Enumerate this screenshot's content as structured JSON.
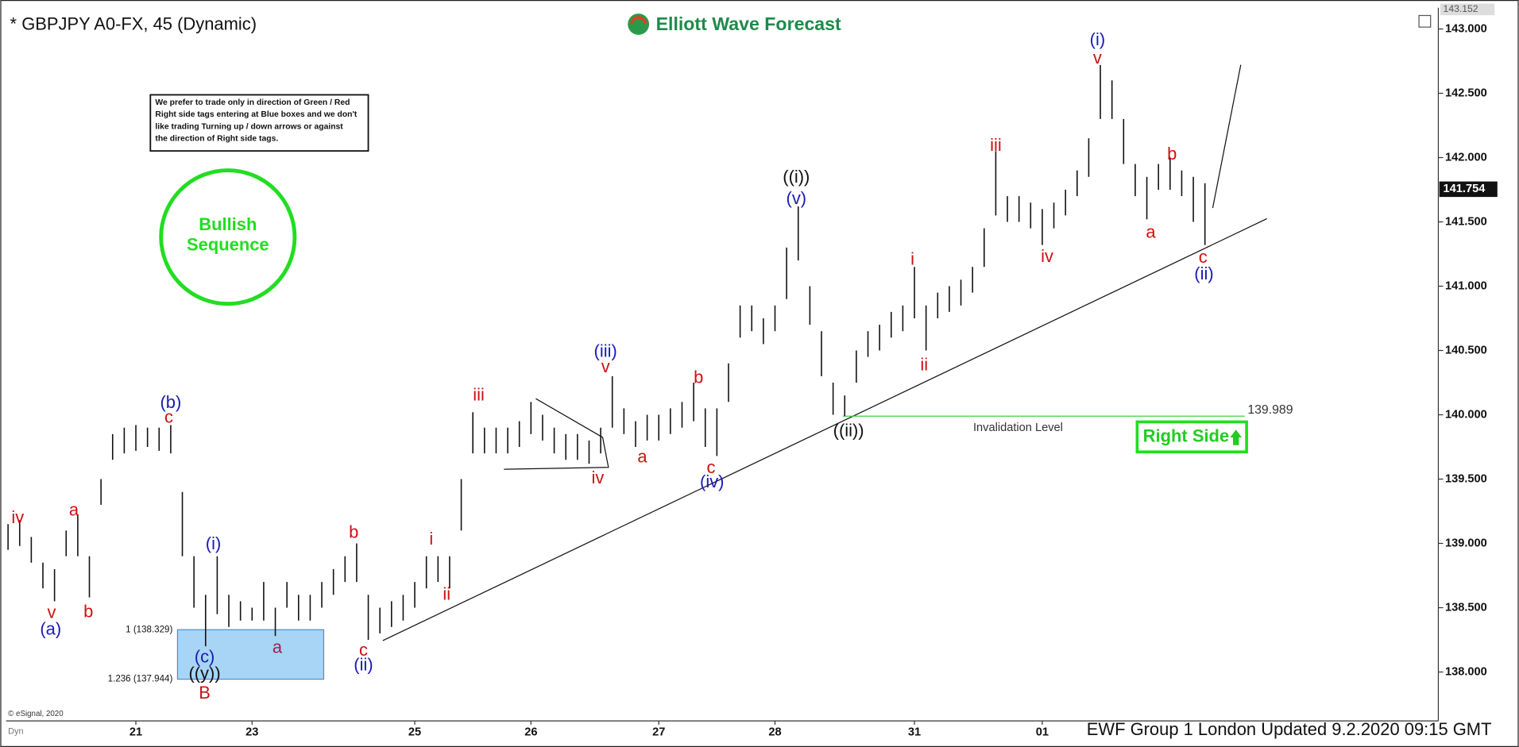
{
  "chart_data": {
    "type": "ohlc",
    "title": "* GBPJPY A0-FX, 45 (Dynamic)",
    "brand": "Elliott Wave Forecast",
    "disclaimer": [
      "We prefer to trade only in direction of Green / Red",
      "Right side tags entering at Blue boxes and we don't",
      "like trading Turning up / down arrows or against",
      "the direction of Right side tags."
    ],
    "badge": [
      "Bullish",
      "Sequence"
    ],
    "right_side": "Right Side",
    "footer": "EWF Group 1 London Updated 9.2.2020 09:15 GMT",
    "copyright": "© eSignal, 2020",
    "corner": "Dyn",
    "color": "#111111",
    "categories": [
      null,
      null,
      null,
      null,
      null,
      null,
      null,
      null,
      null,
      null,
      null,
      "21",
      null,
      null,
      null,
      null,
      null,
      null,
      null,
      null,
      null,
      "23",
      null,
      null,
      null,
      null,
      null,
      null,
      null,
      null,
      null,
      null,
      null,
      null,
      null,
      "25",
      null,
      null,
      null,
      null,
      null,
      null,
      null,
      null,
      null,
      "26",
      null,
      null,
      null,
      null,
      null,
      null,
      null,
      null,
      null,
      null,
      "27",
      null,
      null,
      null,
      null,
      null,
      null,
      null,
      null,
      null,
      "28",
      null,
      null,
      null,
      null,
      null,
      null,
      null,
      null,
      null,
      null,
      null,
      "31",
      null,
      null,
      null,
      null,
      null,
      null,
      null,
      null,
      null,
      null,
      "01",
      null,
      null,
      null,
      null,
      null,
      null,
      null,
      null,
      null,
      null,
      null,
      null,
      null,
      null
    ],
    "highs": [
      139.15,
      139.18,
      139.05,
      138.85,
      138.8,
      139.1,
      139.22,
      138.9,
      139.5,
      139.85,
      139.9,
      139.92,
      139.9,
      139.9,
      139.92,
      139.4,
      138.9,
      138.6,
      138.9,
      138.6,
      138.55,
      138.5,
      138.7,
      138.5,
      138.7,
      138.6,
      138.6,
      138.7,
      138.8,
      138.9,
      139.0,
      138.6,
      138.5,
      138.55,
      138.6,
      138.7,
      138.9,
      138.9,
      138.9,
      139.5,
      140.02,
      139.9,
      139.9,
      139.9,
      139.95,
      140.1,
      140.0,
      139.9,
      139.85,
      139.85,
      139.8,
      139.9,
      140.3,
      140.05,
      139.95,
      140.0,
      140.0,
      140.05,
      140.1,
      140.25,
      140.05,
      140.05,
      140.4,
      140.85,
      140.85,
      140.75,
      140.85,
      141.3,
      141.62,
      141.0,
      140.65,
      140.25,
      140.15,
      140.5,
      140.65,
      140.7,
      140.8,
      140.85,
      141.15,
      140.85,
      140.95,
      141.0,
      141.05,
      141.15,
      141.45,
      142.05,
      141.7,
      141.7,
      141.65,
      141.6,
      141.65,
      141.75,
      141.9,
      142.15,
      142.72,
      142.6,
      142.3,
      141.95,
      141.85,
      141.95,
      142.0,
      141.9,
      141.85,
      141.8
    ],
    "lows": [
      138.95,
      138.98,
      138.85,
      138.65,
      138.55,
      138.9,
      138.9,
      138.58,
      139.3,
      139.65,
      139.7,
      139.72,
      139.75,
      139.72,
      139.7,
      138.9,
      138.5,
      138.2,
      138.45,
      138.35,
      138.4,
      138.4,
      138.4,
      138.28,
      138.5,
      138.4,
      138.4,
      138.5,
      138.6,
      138.7,
      138.7,
      138.25,
      138.3,
      138.35,
      138.4,
      138.5,
      138.65,
      138.7,
      138.65,
      139.1,
      139.7,
      139.7,
      139.7,
      139.7,
      139.75,
      139.85,
      139.8,
      139.7,
      139.65,
      139.65,
      139.62,
      139.7,
      139.9,
      139.85,
      139.75,
      139.8,
      139.8,
      139.85,
      139.9,
      139.95,
      139.75,
      139.68,
      140.1,
      140.6,
      140.65,
      140.55,
      140.65,
      140.9,
      141.2,
      140.7,
      140.3,
      140.0,
      139.99,
      140.25,
      140.45,
      140.5,
      140.6,
      140.65,
      140.75,
      140.5,
      140.75,
      140.8,
      140.85,
      140.95,
      141.15,
      141.55,
      141.5,
      141.5,
      141.45,
      141.32,
      141.45,
      141.55,
      141.7,
      141.85,
      142.3,
      142.3,
      141.95,
      141.7,
      141.52,
      141.75,
      141.75,
      141.7,
      141.5,
      141.32
    ],
    "ylim": [
      137.62,
      143.15
    ],
    "yticks": [
      {
        "value": 138,
        "label": "138.000"
      },
      {
        "value": 138.5,
        "label": "138.500"
      },
      {
        "value": 139,
        "label": "139.000"
      },
      {
        "value": 139.5,
        "label": "139.500"
      },
      {
        "value": 140,
        "label": "140.000"
      },
      {
        "value": 140.5,
        "label": "140.500"
      },
      {
        "value": 141,
        "label": "141.000"
      },
      {
        "value": 141.5,
        "label": "141.500"
      },
      {
        "value": 142,
        "label": "142.000"
      },
      {
        "value": 142.5,
        "label": "142.500"
      },
      {
        "value": 143,
        "label": "143.000"
      }
    ],
    "last_price": 141.754,
    "top_price": 143.152,
    "invalidation": {
      "value": 139.989,
      "label": "Invalidation Level"
    },
    "fib_levels": [
      {
        "value": 138.329,
        "label": "1 (138.329)"
      },
      {
        "value": 137.944,
        "label": "1.236 (137.944)"
      }
    ],
    "annotations": [
      {
        "text": "iv",
        "color": "#cc1111"
      },
      {
        "text": "v",
        "color": "#cc1111"
      },
      {
        "text": "(a)",
        "color": "#1a1ab8"
      },
      {
        "text": "a",
        "color": "#cc1111"
      },
      {
        "text": "b",
        "color": "#cc1111"
      },
      {
        "text": "(b)",
        "color": "#1a1ab8"
      },
      {
        "text": "c",
        "color": "#cc1111"
      },
      {
        "text": "(i)",
        "color": "#1a1ab8"
      },
      {
        "text": "(c)",
        "color": "#1a1ab8"
      },
      {
        "text": "((y))",
        "color": "#111111"
      },
      {
        "text": "B",
        "color": "#cc1111"
      },
      {
        "text": "a",
        "color": "#a3204a"
      },
      {
        "text": "b",
        "color": "#cc1111"
      },
      {
        "text": "c",
        "color": "#cc1111"
      },
      {
        "text": "(ii)",
        "color": "#1a1ab8"
      },
      {
        "text": "i",
        "color": "#cc1111"
      },
      {
        "text": "ii",
        "color": "#cc1111"
      },
      {
        "text": "iii",
        "color": "#cc1111"
      },
      {
        "text": "(iii)",
        "color": "#1a1ab8"
      },
      {
        "text": "v",
        "color": "#cc1111"
      },
      {
        "text": "iv",
        "color": "#cc1111"
      },
      {
        "text": "a",
        "color": "#cc1111"
      },
      {
        "text": "b",
        "color": "#cc1111"
      },
      {
        "text": "c",
        "color": "#cc1111"
      },
      {
        "text": "(iv)",
        "color": "#1a1ab8"
      },
      {
        "text": "((i))",
        "color": "#111111"
      },
      {
        "text": "(v)",
        "color": "#1a1ab8"
      },
      {
        "text": "((ii))",
        "color": "#111111"
      },
      {
        "text": "i",
        "color": "#cc1111"
      },
      {
        "text": "ii",
        "color": "#cc1111"
      },
      {
        "text": "iii",
        "color": "#cc1111"
      },
      {
        "text": "iv",
        "color": "#cc1111"
      },
      {
        "text": "(i)",
        "color": "#1a1ab8"
      },
      {
        "text": "v",
        "color": "#cc1111"
      },
      {
        "text": "a",
        "color": "#cc1111"
      },
      {
        "text": "b",
        "color": "#cc1111"
      },
      {
        "text": "c",
        "color": "#cc1111"
      },
      {
        "text": "(ii)",
        "color": "#1a1ab8"
      }
    ]
  }
}
